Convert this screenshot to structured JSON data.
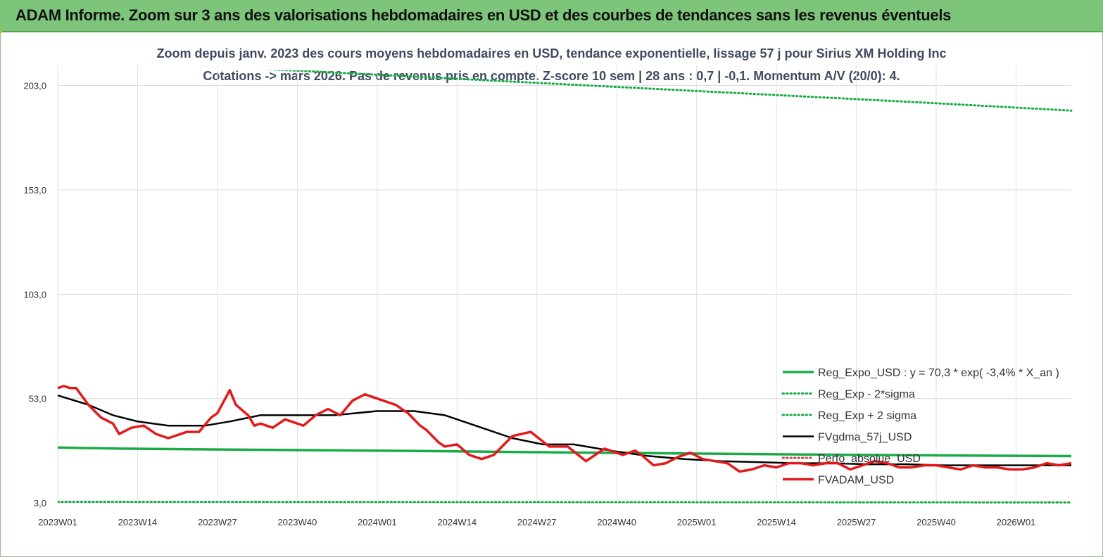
{
  "header": {
    "title": "ADAM Informe. Zoom sur 3 ans des valorisations hebdomadaires en USD et des courbes de tendances sans les revenus éventuels"
  },
  "chart_data": {
    "type": "line",
    "title": "Zoom depuis janv. 2023 des cours moyens hebdomadaires en USD, tendance exponentielle, lissage 57 j pour Sirius XM Holding Inc",
    "subtitle": "Cotations -> mars 2026. Pas de revenus pris en compte. Z-score 10 sem | 28 ans : 0,7 | -0,1. Momentum A/V (20/0): 4.",
    "xlabel": "",
    "ylabel": "",
    "ylim": [
      3,
      213
    ],
    "yticks": [
      "203,0",
      "153,0",
      "103,0",
      "53,0",
      "3,0"
    ],
    "ytick_values": [
      203,
      153,
      103,
      53,
      3
    ],
    "xticks": [
      "2023W01",
      "2023W14",
      "2023W27",
      "2023W40",
      "2024W01",
      "2024W14",
      "2024W27",
      "2024W40",
      "2025W01",
      "2025W14",
      "2025W27",
      "2025W40",
      "2026W01"
    ],
    "grid": true,
    "legend_position": "right",
    "weeks_total": 166,
    "series": [
      {
        "name": "Reg_Expo_USD : y = 70,3 * exp( -3,4% *  X_an )",
        "color": "#1aab48",
        "style": "solid-thick",
        "x": [
          0,
          10,
          33,
          57,
          81,
          105,
          129,
          153,
          165
        ],
        "values": [
          29.5,
          29.0,
          28.4,
          27.9,
          27.2,
          26.6,
          26.0,
          25.6,
          25.4
        ]
      },
      {
        "name": "Reg_Exp - 2*sigma",
        "color": "#1aab48",
        "style": "dotted",
        "x": [
          0,
          165
        ],
        "values": [
          3.5,
          3.2
        ]
      },
      {
        "name": "Reg_Exp + 2 sigma",
        "color": "#1aab48",
        "style": "dotted",
        "x": [
          0,
          17,
          40,
          60,
          80,
          100,
          120,
          140,
          165
        ],
        "values": [
          215,
          213,
          210,
          207,
          204,
          201,
          198,
          195,
          191
        ]
      },
      {
        "name": "FVgdma_57j_USD",
        "color": "#000000",
        "style": "solid",
        "x": [
          0,
          5,
          9,
          13,
          18,
          24,
          28,
          33,
          38,
          45,
          52,
          58,
          63,
          68,
          74,
          79,
          84,
          90,
          96,
          102,
          108,
          114,
          120,
          126,
          132,
          138,
          144,
          150,
          156,
          165
        ],
        "values": [
          54.5,
          50,
          45,
          42,
          40,
          40,
          42,
          45,
          45,
          45,
          47,
          47,
          45,
          40,
          34,
          31,
          31,
          28,
          25.5,
          24,
          23,
          22.5,
          22,
          22,
          21.5,
          21.5,
          21,
          21,
          21,
          21
        ]
      },
      {
        "name": "Perfo_absolue_USD",
        "color": "#c0504d",
        "style": "dotted",
        "x": [],
        "values": []
      },
      {
        "name": "FVADAM_USD",
        "color": "#e31a1c",
        "style": "solid-thick",
        "x": [
          0,
          1,
          2,
          3,
          5,
          7,
          9,
          10,
          12,
          14,
          16,
          18,
          19,
          21,
          23,
          25,
          26,
          28,
          29,
          31,
          32,
          33,
          35,
          37,
          40,
          42,
          44,
          46,
          48,
          50,
          52,
          55,
          57,
          59,
          60,
          62,
          63,
          65,
          67,
          69,
          71,
          74,
          77,
          80,
          83,
          86,
          89,
          90,
          92,
          94,
          95,
          97,
          99,
          101,
          103,
          105,
          107,
          109,
          111,
          113,
          115,
          117,
          119,
          121,
          123,
          125,
          127,
          129,
          131,
          133,
          135,
          137,
          139,
          141,
          143,
          145,
          147,
          149,
          151,
          153,
          155,
          157,
          159,
          161,
          163,
          165
        ],
        "values": [
          58,
          59,
          58,
          58,
          50,
          44,
          41,
          36,
          39,
          40,
          36,
          34,
          35,
          37,
          37,
          44,
          46,
          57,
          50,
          45,
          40,
          41,
          39,
          43,
          40,
          45,
          48,
          45,
          52,
          55,
          53,
          50,
          46,
          40,
          38,
          32,
          30,
          31,
          26,
          24,
          26,
          35,
          37,
          30,
          30,
          23,
          29,
          28,
          26,
          28,
          26,
          21,
          22,
          25,
          27,
          24,
          23,
          22,
          18,
          19,
          21,
          20,
          22,
          22,
          21,
          22,
          22,
          19,
          21,
          23,
          22,
          20,
          20,
          21,
          21,
          20,
          19,
          21,
          20,
          20,
          19,
          19,
          20,
          22,
          21,
          22
        ]
      }
    ]
  }
}
